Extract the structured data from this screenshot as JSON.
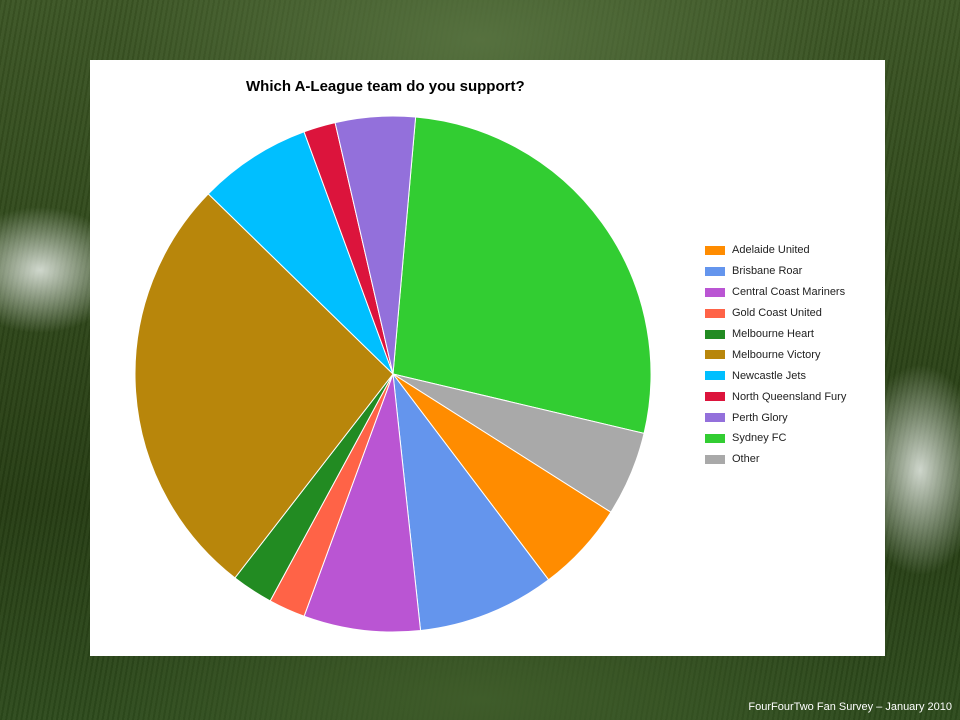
{
  "caption": "FourFourTwo Fan Survey – January 2010",
  "chart_data": {
    "type": "pie",
    "title": "Which A-League team do you support?",
    "legend_position": "right",
    "slices": [
      {
        "label": "Adelaide United",
        "value": 5.7,
        "color": "#FF8C00"
      },
      {
        "label": "Brisbane Roar",
        "value": 8.6,
        "color": "#6495ED"
      },
      {
        "label": "Central Coast Mariners",
        "value": 7.3,
        "color": "#BA55D3"
      },
      {
        "label": "Gold Coast United",
        "value": 2.3,
        "color": "#FF6347"
      },
      {
        "label": "Melbourne Heart",
        "value": 2.6,
        "color": "#228B22"
      },
      {
        "label": "Melbourne Victory",
        "value": 26.8,
        "color": "#B8860B"
      },
      {
        "label": "Newcastle Jets",
        "value": 7.1,
        "color": "#00BFFF"
      },
      {
        "label": "North Queensland Fury",
        "value": 2.0,
        "color": "#DC143C"
      },
      {
        "label": "Perth Glory",
        "value": 5.0,
        "color": "#9370DB"
      },
      {
        "label": "Sydney FC",
        "value": 27.3,
        "color": "#32CD32"
      },
      {
        "label": "Other",
        "value": 5.3,
        "color": "#A9A9A9"
      }
    ]
  }
}
